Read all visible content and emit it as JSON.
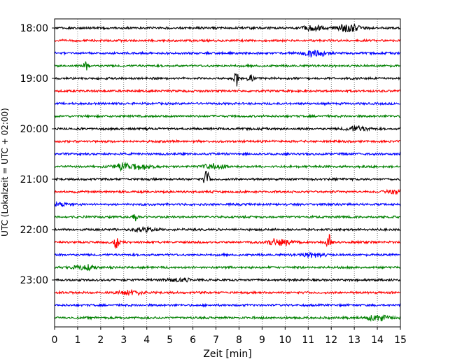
{
  "chart_data": {
    "type": "line",
    "title": "",
    "xlabel": "Zeit  [min]",
    "ylabel": "UTC (Lokalzeit = UTC + 02:00)",
    "xlim": [
      0,
      15
    ],
    "x_ticks": [
      0,
      1,
      2,
      3,
      4,
      5,
      6,
      7,
      8,
      9,
      10,
      11,
      12,
      13,
      14,
      15
    ],
    "y_ticks": [
      "18:00",
      "19:00",
      "20:00",
      "21:00",
      "22:00",
      "23:00"
    ],
    "grid": "vertical-dotted",
    "trace_colors": [
      "#000000",
      "#ff0000",
      "#0000ff",
      "#008000"
    ],
    "traces": [
      {
        "start": "18:00",
        "events": [
          {
            "minute": 11.2,
            "amplitude": 4
          },
          {
            "minute": 12.8,
            "amplitude": 6
          }
        ]
      },
      {
        "start": "18:15",
        "events": []
      },
      {
        "start": "18:30",
        "events": [
          {
            "minute": 11.3,
            "amplitude": 5
          }
        ]
      },
      {
        "start": "18:45",
        "events": [
          {
            "minute": 1.4,
            "amplitude": 8
          }
        ]
      },
      {
        "start": "19:00",
        "events": [
          {
            "minute": 7.9,
            "amplitude": 12
          },
          {
            "minute": 8.5,
            "amplitude": 9
          }
        ]
      },
      {
        "start": "19:15",
        "events": []
      },
      {
        "start": "19:30",
        "events": []
      },
      {
        "start": "19:45",
        "events": []
      },
      {
        "start": "20:00",
        "events": [
          {
            "minute": 13.1,
            "amplitude": 4
          }
        ]
      },
      {
        "start": "20:15",
        "events": []
      },
      {
        "start": "20:30",
        "events": []
      },
      {
        "start": "20:45",
        "events": [
          {
            "minute": 3.0,
            "amplitude": 5
          },
          {
            "minute": 3.7,
            "amplitude": 4
          },
          {
            "minute": 6.9,
            "amplitude": 4
          }
        ]
      },
      {
        "start": "21:00",
        "events": [
          {
            "minute": 6.6,
            "amplitude": 16
          }
        ]
      },
      {
        "start": "21:15",
        "events": [
          {
            "minute": 14.9,
            "amplitude": 3
          }
        ]
      },
      {
        "start": "21:30",
        "events": [
          {
            "minute": 0.1,
            "amplitude": 3
          }
        ]
      },
      {
        "start": "21:45",
        "events": [
          {
            "minute": 3.5,
            "amplitude": 8
          }
        ]
      },
      {
        "start": "22:00",
        "events": [
          {
            "minute": 3.9,
            "amplitude": 4
          }
        ]
      },
      {
        "start": "22:15",
        "events": [
          {
            "minute": 2.7,
            "amplitude": 11
          },
          {
            "minute": 9.8,
            "amplitude": 6
          },
          {
            "minute": 11.9,
            "amplitude": 12
          }
        ]
      },
      {
        "start": "22:30",
        "events": [
          {
            "minute": 11.2,
            "amplitude": 4
          }
        ]
      },
      {
        "start": "22:45",
        "events": [
          {
            "minute": 1.3,
            "amplitude": 4
          }
        ]
      },
      {
        "start": "23:00",
        "events": [
          {
            "minute": 5.4,
            "amplitude": 3
          }
        ]
      },
      {
        "start": "23:15",
        "events": [
          {
            "minute": 3.3,
            "amplitude": 4
          }
        ]
      },
      {
        "start": "23:30",
        "events": []
      },
      {
        "start": "23:45",
        "events": [
          {
            "minute": 14.0,
            "amplitude": 5
          }
        ]
      }
    ]
  }
}
